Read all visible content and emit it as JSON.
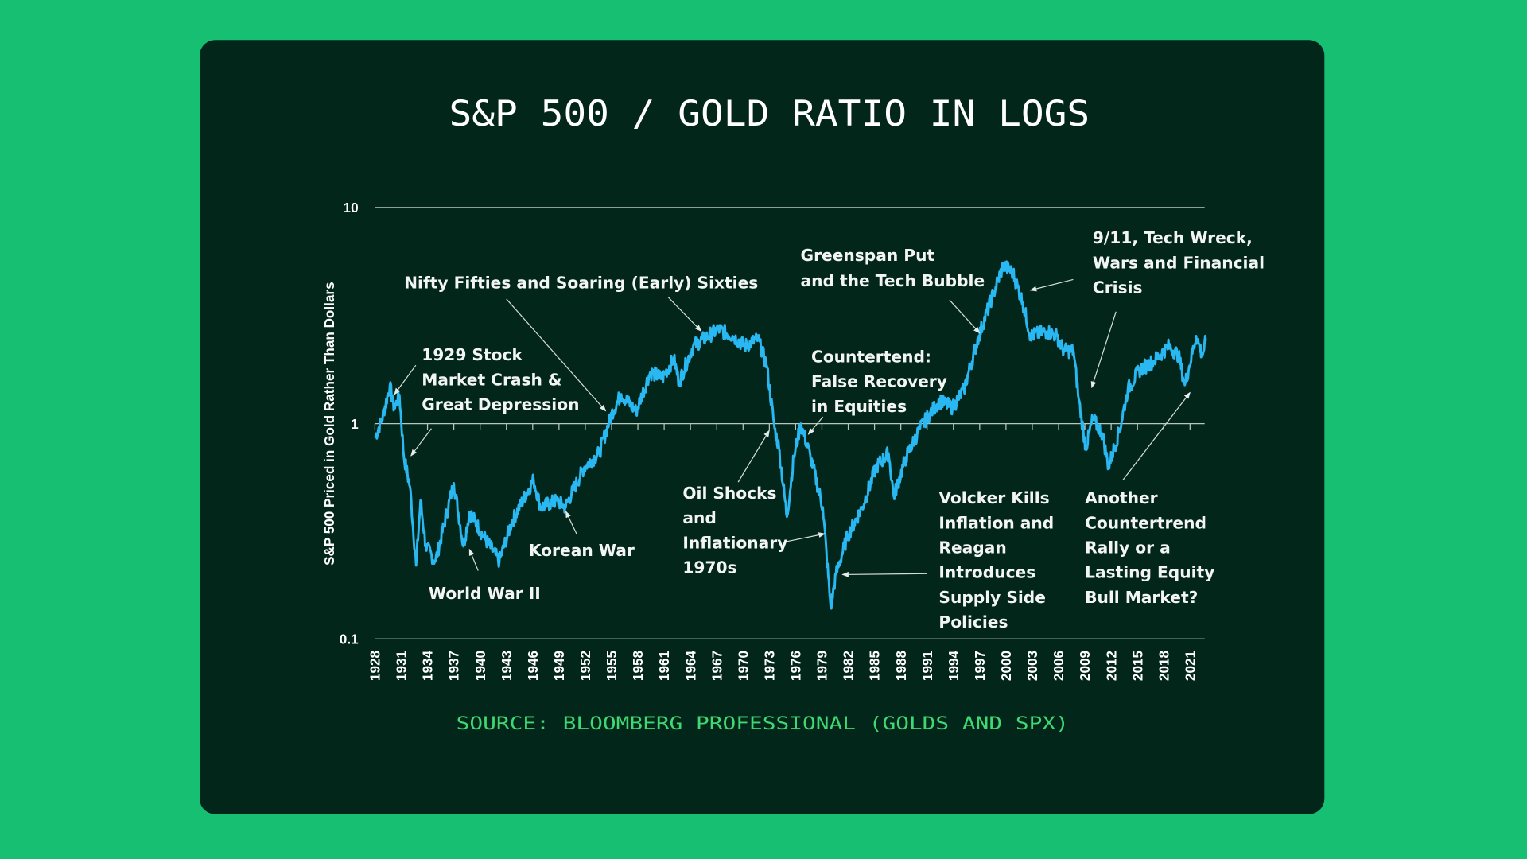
{
  "colors": {
    "background": "#17bf72",
    "card": "#03261a",
    "line": "#2ab8f2",
    "source": "#3fd872"
  },
  "chart_data": {
    "type": "line",
    "title": "S&P 500 / GOLD RATIO IN LOGS",
    "ylabel": "S&P 500 Priced in Gold Rather Than Dollars",
    "xlabel": "",
    "yscale": "log",
    "ylim": [
      0.1,
      10
    ],
    "y_ticks": [
      "10",
      "1",
      "0.1"
    ],
    "x_ticks": [
      "1928",
      "1931",
      "1934",
      "1937",
      "1940",
      "1943",
      "1946",
      "1949",
      "1952",
      "1955",
      "1958",
      "1961",
      "1964",
      "1967",
      "1970",
      "1973",
      "1976",
      "1979",
      "1982",
      "1985",
      "1988",
      "1991",
      "1994",
      "1997",
      "2000",
      "2003",
      "2006",
      "2009",
      "2012",
      "2015",
      "2018",
      "2021"
    ],
    "grid": "horizontal lines at 10, 1, 0.1",
    "series": [
      {
        "name": "S&P 500 / Gold",
        "x": [
          1928,
          1928.8,
          1929.7,
          1930.2,
          1930.8,
          1931.3,
          1932.0,
          1932.7,
          1933.2,
          1933.8,
          1934.9,
          1937.0,
          1938.1,
          1938.8,
          1940.4,
          1942.2,
          1943.6,
          1946.1,
          1946.9,
          1948.8,
          1949.7,
          1951.9,
          1953.6,
          1955.0,
          1956.1,
          1957.8,
          1959.4,
          1960.8,
          1962.1,
          1962.7,
          1964.3,
          1967.2,
          1968.8,
          1970.2,
          1971.7,
          1972.7,
          1973.6,
          1974.1,
          1975.0,
          1975.8,
          1976.6,
          1977.7,
          1979.1,
          1980.0,
          1980.6,
          1981.9,
          1983.6,
          1985.2,
          1986.6,
          1987.2,
          1988.6,
          1990.2,
          1991.3,
          1992.4,
          1993.9,
          1995.2,
          1996.9,
          1998.6,
          1999.7,
          2000.8,
          2001.9,
          2002.8,
          2004.7,
          2005.8,
          2006.6,
          2007.7,
          2008.3,
          2009.1,
          2009.9,
          2011.0,
          2011.7,
          2013.0,
          2013.9,
          2015.2,
          2016.9,
          2018.6,
          2019.7,
          2020.4,
          2021.7,
          2022.4,
          2022.8
        ],
        "values": [
          0.86,
          1.05,
          1.5,
          1.17,
          1.36,
          0.7,
          0.51,
          0.22,
          0.44,
          0.27,
          0.23,
          0.53,
          0.27,
          0.39,
          0.3,
          0.23,
          0.35,
          0.55,
          0.41,
          0.44,
          0.41,
          0.63,
          0.73,
          1.11,
          1.37,
          1.14,
          1.73,
          1.63,
          2.0,
          1.56,
          2.29,
          2.74,
          2.55,
          2.29,
          2.47,
          1.86,
          0.95,
          0.77,
          0.37,
          0.7,
          1.0,
          0.7,
          0.41,
          0.14,
          0.2,
          0.3,
          0.41,
          0.63,
          0.73,
          0.46,
          0.7,
          0.95,
          1.11,
          1.27,
          1.19,
          1.44,
          2.55,
          4.06,
          5.43,
          5.0,
          3.65,
          2.55,
          2.68,
          2.55,
          2.18,
          2.18,
          1.3,
          0.77,
          1.05,
          0.9,
          0.63,
          0.95,
          1.44,
          1.77,
          1.96,
          2.29,
          2.07,
          1.51,
          2.55,
          2.07,
          2.42
        ]
      }
    ],
    "annotations": {
      "nifty": [
        "Nifty Fifties and Soaring (Early) Sixties"
      ],
      "crash": [
        "1929 Stock",
        "Market Crash &",
        "Great Depression"
      ],
      "korea": [
        "Korean War"
      ],
      "ww2": [
        "World War II"
      ],
      "oil": [
        "Oil Shocks",
        "and",
        "Inflationary",
        "1970s"
      ],
      "greenspan": [
        "Greenspan Put",
        "and the Tech Bubble"
      ],
      "counter": [
        "Countertend:",
        "False Recovery",
        "in Equities"
      ],
      "wreck": [
        "9/11, Tech Wreck,",
        "Wars and Financial",
        "Crisis"
      ],
      "volcker": [
        "Volcker Kills",
        "Inflation and",
        "Reagan",
        "Introduces",
        "Supply Side",
        "Policies"
      ],
      "another": [
        "Another",
        "Countertrend",
        "Rally or a",
        "Lasting Equity",
        "Bull Market?"
      ]
    },
    "source": "SOURCE: BLOOMBERG PROFESSIONAL (GOLDS AND SPX)"
  }
}
